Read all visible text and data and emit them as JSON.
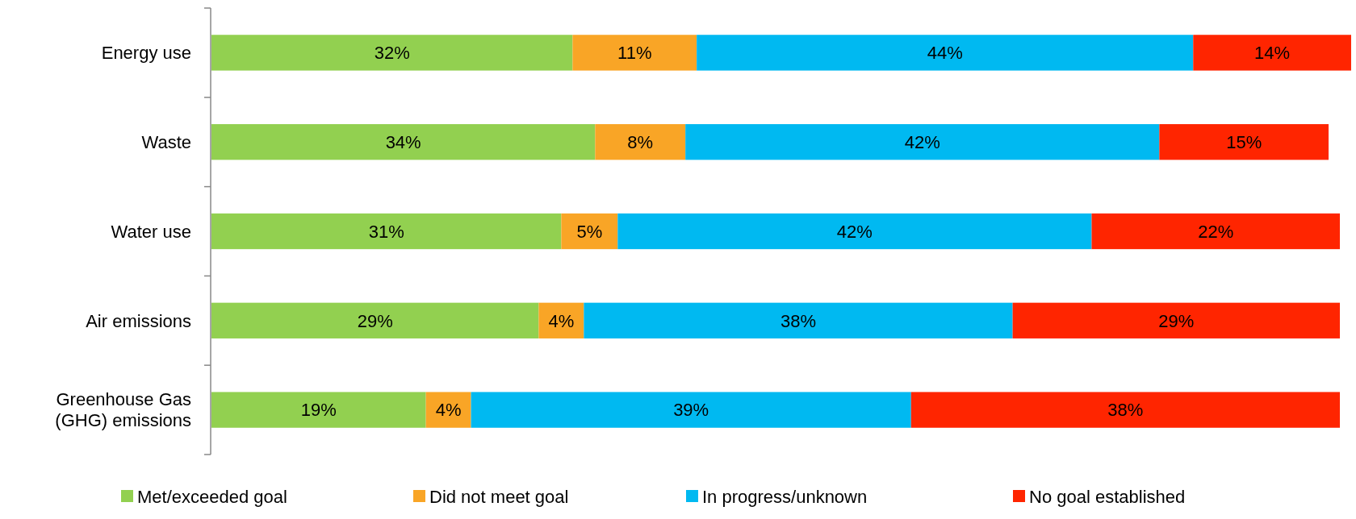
{
  "chart_data": {
    "type": "bar",
    "orientation": "horizontal",
    "stacked": true,
    "categories": [
      "Energy use",
      "Waste",
      "Water use",
      "Air emissions",
      "Greenhouse Gas\n(GHG) emissions"
    ],
    "series": [
      {
        "name": "Met/exceeded goal",
        "color": "#92d050",
        "values": [
          32,
          34,
          31,
          29,
          19
        ],
        "value_labels": [
          "32%",
          "34%",
          "31%",
          "29%",
          "19%"
        ]
      },
      {
        "name": "Did not meet goal",
        "color": "#f9a526",
        "values": [
          11,
          8,
          5,
          4,
          4
        ],
        "value_labels": [
          "11%",
          "8%",
          "5%",
          "4%",
          "4%"
        ]
      },
      {
        "name": "In progress/unknown",
        "color": "#00b9f1",
        "values": [
          44,
          42,
          42,
          38,
          39
        ],
        "value_labels": [
          "44%",
          "42%",
          "42%",
          "38%",
          "39%"
        ]
      },
      {
        "name": "No goal established",
        "color": "#ff2500",
        "values": [
          14,
          15,
          22,
          29,
          38
        ],
        "value_labels": [
          "14%",
          "15%",
          "22%",
          "29%",
          "38%"
        ]
      }
    ],
    "xlim": [
      0,
      101
    ],
    "legend": "bottom",
    "tick_labels": "y"
  }
}
